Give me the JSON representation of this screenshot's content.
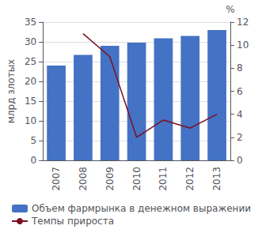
{
  "chart_data": {
    "type": "bar",
    "categories": [
      "2007",
      "2008",
      "2009",
      "2010",
      "2011",
      "2012",
      "2013"
    ],
    "series": [
      {
        "name": "Объем фармрынка в денежном выражении",
        "type": "bar",
        "color": "#4472c4",
        "values": [
          24.0,
          26.7,
          29.0,
          29.8,
          30.9,
          31.5,
          33.0
        ]
      },
      {
        "name": "Темпы прироста",
        "type": "line",
        "color": "#7b1020",
        "axis": "y2",
        "values": [
          null,
          11.0,
          9.0,
          2.0,
          3.5,
          2.8,
          4.0
        ]
      }
    ],
    "ylabel": "млрд злотых",
    "y2label": "%",
    "ylim": [
      0,
      35
    ],
    "yticks": [
      0,
      5,
      10,
      15,
      20,
      25,
      30,
      35
    ],
    "y2lim": [
      0,
      12
    ],
    "y2ticks": [
      0,
      2,
      4,
      6,
      8,
      10,
      12
    ],
    "grid": true,
    "legend": "bottom"
  }
}
